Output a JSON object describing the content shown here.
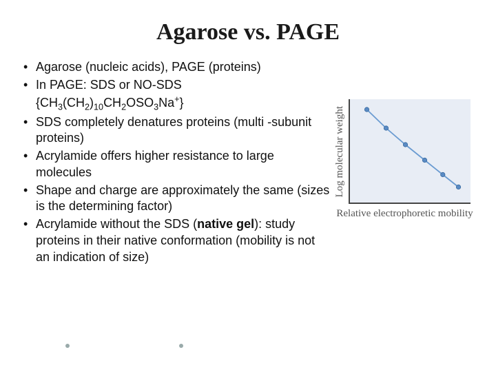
{
  "title": "Agarose vs. PAGE",
  "bullets": [
    "Agarose (nucleic acids), PAGE (proteins)",
    "In PAGE: SDS or NO-SDS {CH₃(CH₂)₁₀CH₂OSO₃Na⁺}",
    "SDS completely denatures proteins (multi -subunit proteins)",
    "Acrylamide offers higher resistance to large molecules",
    "Shape and charge are approximately the same (sizes is the determining factor)",
    "Acrylamide without the SDS (native gel): study proteins in their native conformation (mobility is not an indication of size)"
  ],
  "bullet1_html": "In PAGE: SDS or NO-SDS {CH<span class='sub'>3</span>(CH<span class='sub'>2</span>)<span class='sub'>10</span>CH<span class='sub'>2</span>OSO<span class='sub'>3</span>Na<span class='sup'>+</span>}",
  "bullet5_html": "Acrylamide without the SDS (<b>native gel</b>): study proteins in their native conformation (mobility is not an indication of size)",
  "chart": {
    "type": "scatter-line",
    "width": 175,
    "height": 150,
    "background_color": "#e8edf5",
    "axis_color": "#444444",
    "line_color": "#6a9bd1",
    "marker_color": "#5a8bc4",
    "marker_radius": 3.2,
    "line_width": 1.8,
    "ylabel": "Log molecular weight",
    "xlabel": "Relative electrophoretic mobility",
    "xlim": [
      0,
      1
    ],
    "ylim": [
      0,
      1
    ],
    "points": [
      {
        "x": 0.14,
        "y": 0.9
      },
      {
        "x": 0.3,
        "y": 0.72
      },
      {
        "x": 0.46,
        "y": 0.56
      },
      {
        "x": 0.62,
        "y": 0.41
      },
      {
        "x": 0.77,
        "y": 0.27
      },
      {
        "x": 0.9,
        "y": 0.15
      }
    ]
  }
}
